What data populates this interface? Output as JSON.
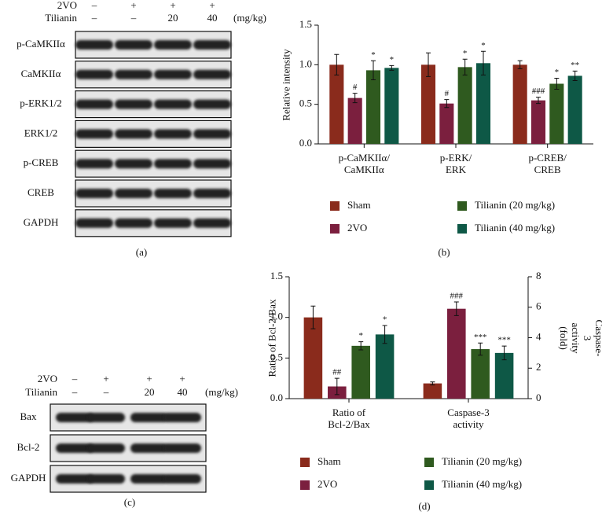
{
  "blots": [
    {
      "panel_label": "(a)",
      "treatments": [
        {
          "name": "2VO",
          "lanes": [
            "–",
            "+",
            "+",
            "+"
          ]
        },
        {
          "name": "Tilianin",
          "lanes": [
            "–",
            "–",
            "20",
            "40"
          ],
          "unit": "(mg/kg)"
        }
      ],
      "bands": [
        "p-CaMKIIα",
        "CaMKIIα",
        "p-ERK1/2",
        "ERK1/2",
        "p-CREB",
        "CREB",
        "GAPDH"
      ]
    },
    {
      "panel_label": "(c)",
      "treatments": [
        {
          "name": "2VO",
          "lanes": [
            "–",
            "+",
            "+",
            "+"
          ]
        },
        {
          "name": "Tilianin",
          "lanes": [
            "–",
            "–",
            "20",
            "40"
          ],
          "unit": "(mg/kg)"
        }
      ],
      "bands": [
        "Bax",
        "Bcl-2",
        "GAPDH"
      ]
    }
  ],
  "chart_data": [
    {
      "type": "bar",
      "panel_label": "(b)",
      "ylabel": "Relative intensity",
      "categories": [
        "p-CaMKIIα/\nCaMKIIα",
        "p-ERK/\nERK",
        "p-CREB/\nCREB"
      ],
      "ylim": [
        0,
        1.5
      ],
      "yticks": [
        {
          "value": 0,
          "label": "0.0"
        },
        0.5,
        {
          "value": 1,
          "label": "1.0"
        },
        1.5
      ],
      "series": [
        {
          "name": "Sham",
          "color": "#8a2b1c",
          "values": [
            1.0,
            1.0,
            1.0
          ],
          "errors": [
            0.13,
            0.15,
            0.05
          ],
          "annotations": [
            null,
            null,
            null
          ]
        },
        {
          "name": "2VO",
          "color": "#7b1f3e",
          "values": [
            0.58,
            0.51,
            0.55
          ],
          "errors": [
            0.06,
            0.05,
            0.04
          ],
          "annotations": [
            "#",
            "#",
            "###"
          ]
        },
        {
          "name": "Tilianin (20 mg/kg)",
          "color": "#2f5a1f",
          "values": [
            0.93,
            0.97,
            0.76
          ],
          "errors": [
            0.12,
            0.1,
            0.07
          ],
          "annotations": [
            "*",
            "*",
            "*"
          ]
        },
        {
          "name": "Tilianin (40 mg/kg)",
          "color": "#0e5846",
          "values": [
            0.96,
            1.02,
            0.86
          ],
          "errors": [
            0.03,
            0.15,
            0.06
          ],
          "annotations": [
            "*",
            "*",
            "**"
          ]
        }
      ]
    },
    {
      "type": "bar",
      "panel_label": "(d)",
      "ylabel": "Ratio of Bcl-2/Bax",
      "y2label": "Caspase-3\nactivity (fold)",
      "categories": [
        "Ratio of\nBcl-2/Bax",
        "Caspase-3\nactivity"
      ],
      "category_axis": [
        "y",
        "y2"
      ],
      "ylim": [
        0,
        1.5
      ],
      "yticks": [
        {
          "value": 0,
          "label": "0.0"
        },
        0.5,
        {
          "value": 1,
          "label": "1.0"
        },
        1.5
      ],
      "y2lim": [
        0,
        8
      ],
      "y2ticks": [
        0,
        2,
        4,
        6,
        8
      ],
      "series": [
        {
          "name": "Sham",
          "color": "#8a2b1c",
          "values": [
            1.0,
            1.0
          ],
          "errors": [
            0.14,
            0.1
          ],
          "annotations": [
            null,
            null
          ]
        },
        {
          "name": "2VO",
          "color": "#7b1f3e",
          "values": [
            0.15,
            5.9
          ],
          "errors": [
            0.1,
            0.45
          ],
          "annotations": [
            "##",
            "###"
          ]
        },
        {
          "name": "Tilianin (20 mg/kg)",
          "color": "#2f5a1f",
          "values": [
            0.65,
            3.25
          ],
          "errors": [
            0.05,
            0.4
          ],
          "annotations": [
            "*",
            "***"
          ]
        },
        {
          "name": "Tilianin (40 mg/kg)",
          "color": "#0e5846",
          "values": [
            0.79,
            3.0
          ],
          "errors": [
            0.11,
            0.45
          ],
          "annotations": [
            "*",
            "***"
          ]
        }
      ]
    }
  ]
}
